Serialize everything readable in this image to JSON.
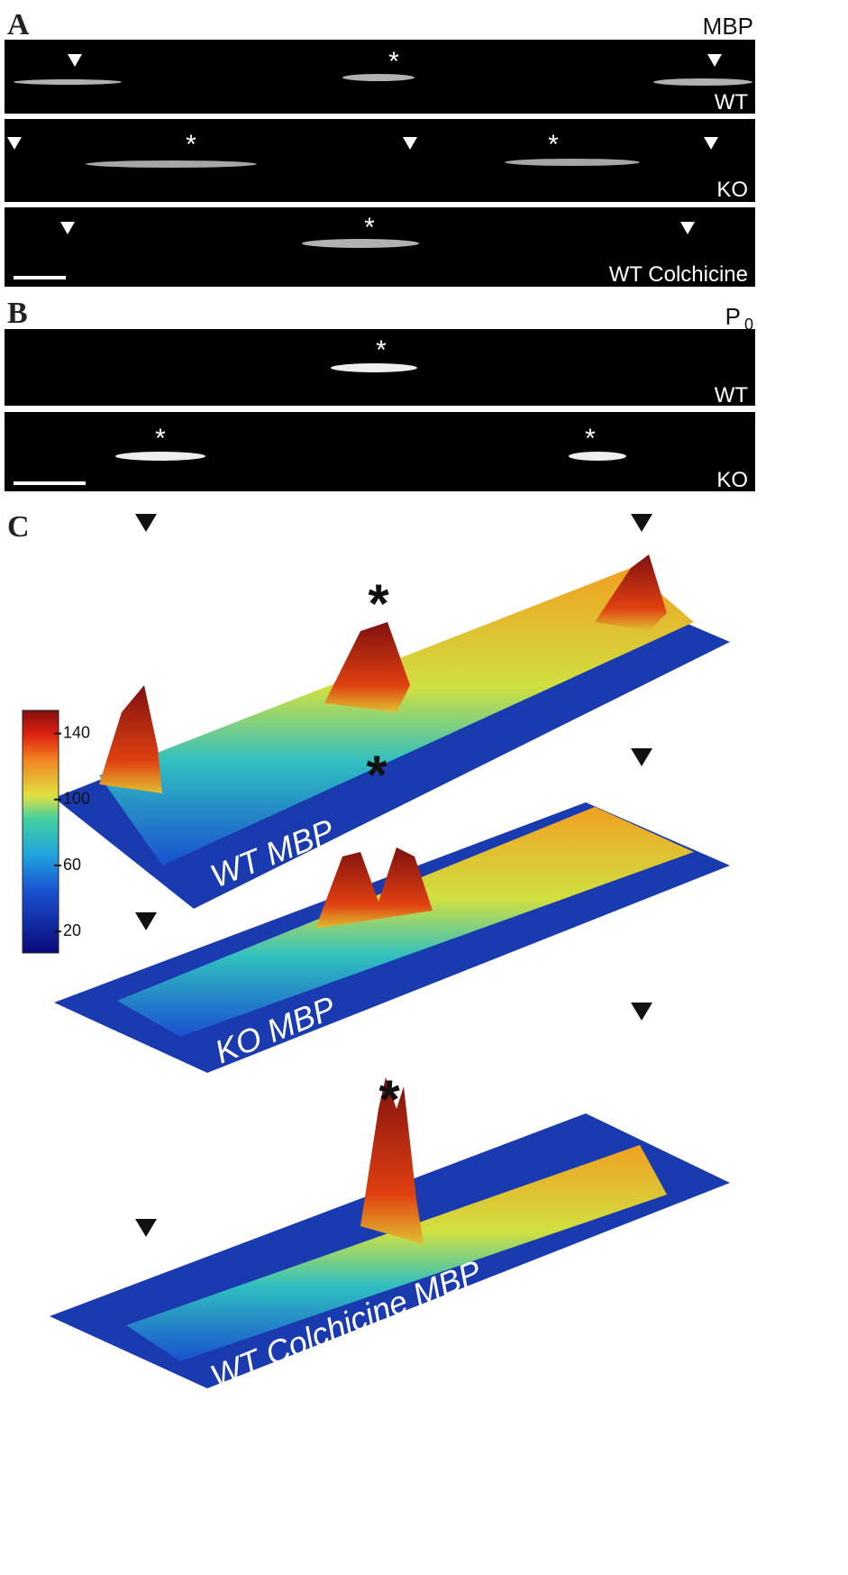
{
  "panel_a": {
    "label": "A",
    "marker_label": "MBP",
    "rows": [
      "WT",
      "KO",
      "WT Colchicine"
    ]
  },
  "panel_b": {
    "label": "B",
    "marker_label": "P",
    "marker_subscript": "0",
    "rows": [
      "WT",
      "KO"
    ]
  },
  "panel_c": {
    "label": "C",
    "surfaces": [
      "WT MBP",
      "KO MBP",
      "WT Colchicine MBP"
    ],
    "colorbar": {
      "lim": [
        7,
        154
      ],
      "ticks": [
        20,
        60,
        100,
        140
      ]
    }
  },
  "asterisk": "*"
}
